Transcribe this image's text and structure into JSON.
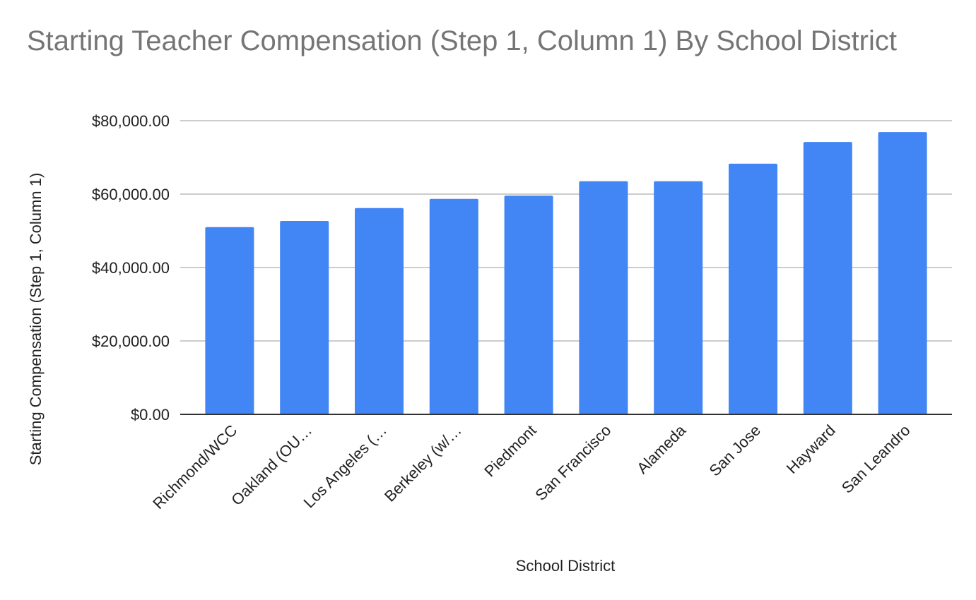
{
  "chart_data": {
    "type": "bar",
    "title": "Starting Teacher Compensation (Step 1, Column 1) By School District",
    "x_label": "School District",
    "y_label": "Starting Compensation (Step 1, Column 1)",
    "categories": [
      "Richmond/WCC",
      "Oakland (OU…",
      "Los Angeles (…",
      "Berkeley (w/…",
      "Piedmont",
      "San Francisco",
      "Alameda",
      "San Jose",
      "Hayward",
      "San Leandro"
    ],
    "values": [
      51000,
      52700,
      56200,
      58700,
      59600,
      63500,
      63500,
      68300,
      74200,
      76900
    ],
    "color": "#4285f4",
    "ylim": [
      0,
      80000
    ],
    "yticks": [
      {
        "value": 0,
        "label": "$0.00"
      },
      {
        "value": 20000,
        "label": "$20,000.00"
      },
      {
        "value": 40000,
        "label": "$40,000.00"
      },
      {
        "value": 60000,
        "label": "$60,000.00"
      },
      {
        "value": 80000,
        "label": "$80,000.00"
      }
    ],
    "grid": true
  }
}
